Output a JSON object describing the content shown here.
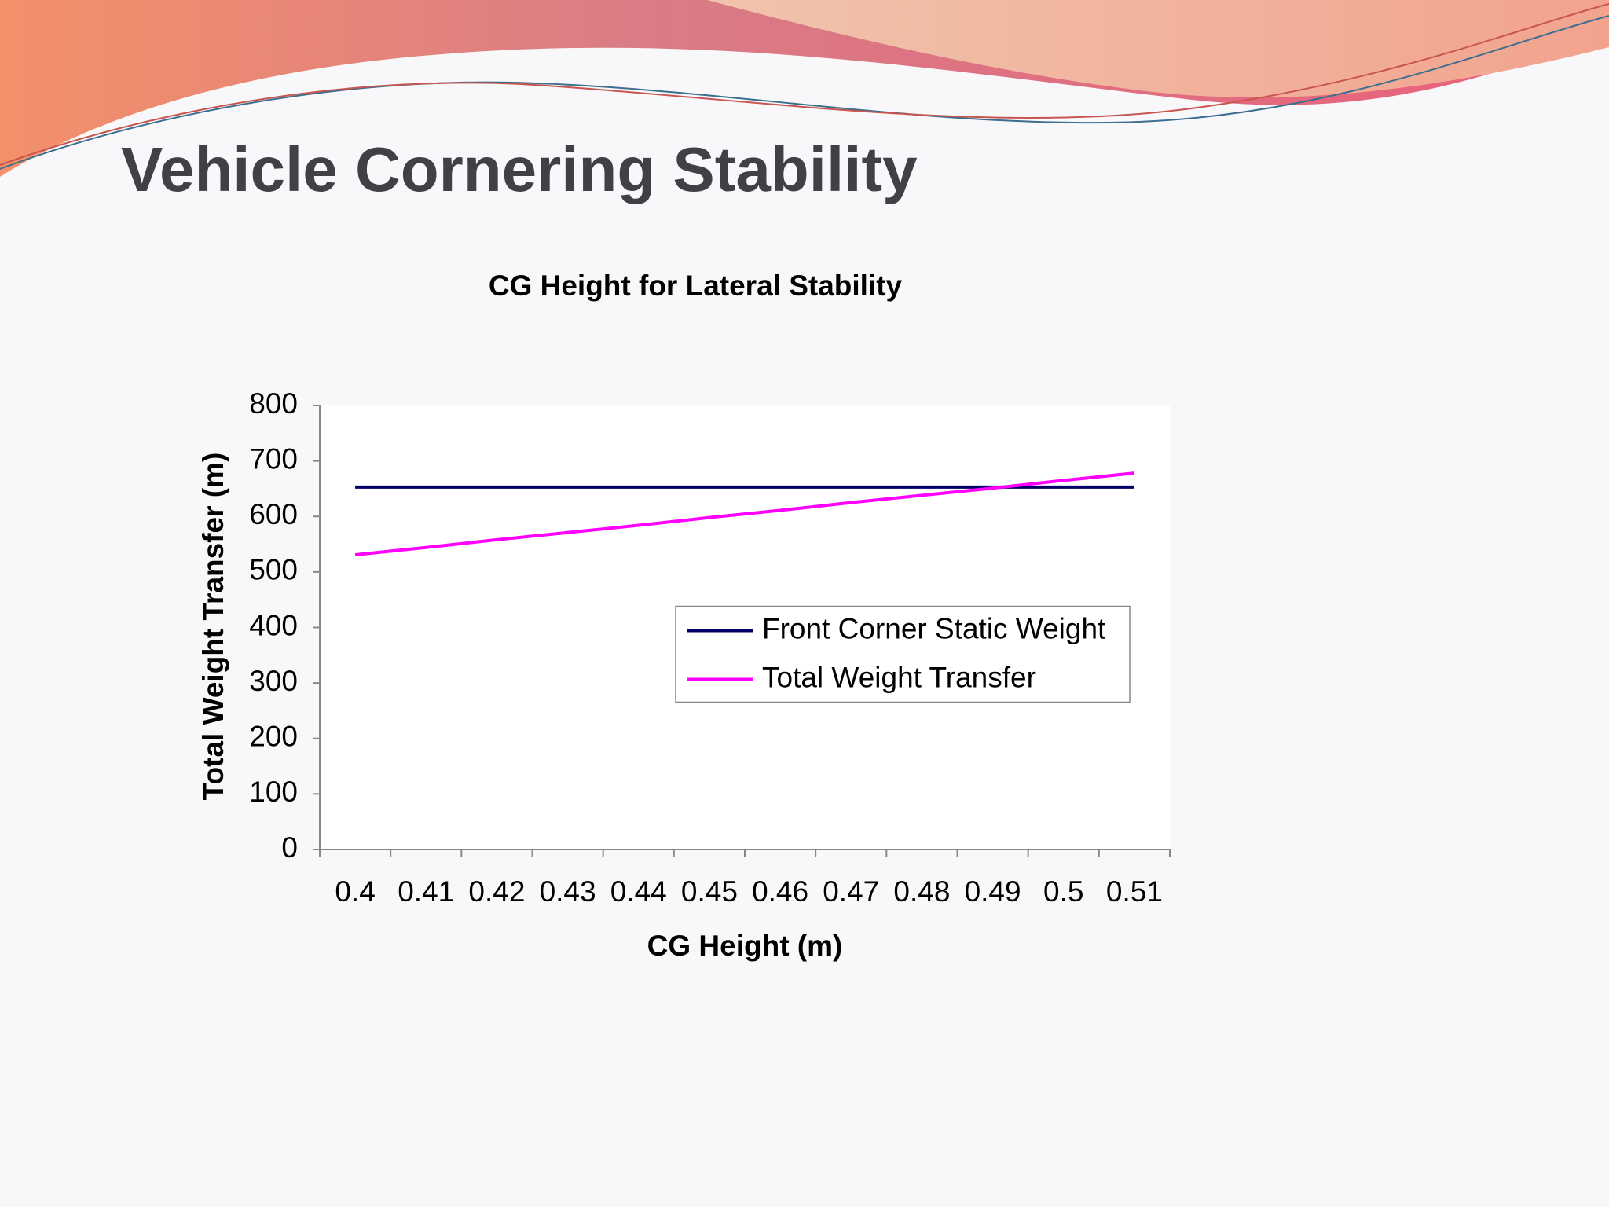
{
  "slide_title": "Vehicle Cornering Stability",
  "chart_data": {
    "type": "line",
    "title": "CG Height for Lateral Stability",
    "x_label": "CG Height (m)",
    "y_label": "Total Weight Transfer (m)",
    "categories": [
      "0.4",
      "0.41",
      "0.42",
      "0.43",
      "0.44",
      "0.45",
      "0.46",
      "0.47",
      "0.48",
      "0.49",
      "0.5",
      "0.51"
    ],
    "series": [
      {
        "name": "Front Corner Static Weight",
        "color": "#000066",
        "values": [
          653,
          653,
          653,
          653,
          653,
          653,
          653,
          653,
          653,
          653,
          653,
          653
        ]
      },
      {
        "name": "Total Weight Transfer",
        "color": "#ff00ff",
        "values": [
          531,
          544,
          558,
          571,
          584,
          598,
          611,
          625,
          638,
          651,
          665,
          678
        ]
      }
    ],
    "ylim": [
      0,
      800
    ],
    "yticks": [
      0,
      100,
      200,
      300,
      400,
      500,
      600,
      700,
      800
    ],
    "grid": false,
    "legend": "right"
  }
}
